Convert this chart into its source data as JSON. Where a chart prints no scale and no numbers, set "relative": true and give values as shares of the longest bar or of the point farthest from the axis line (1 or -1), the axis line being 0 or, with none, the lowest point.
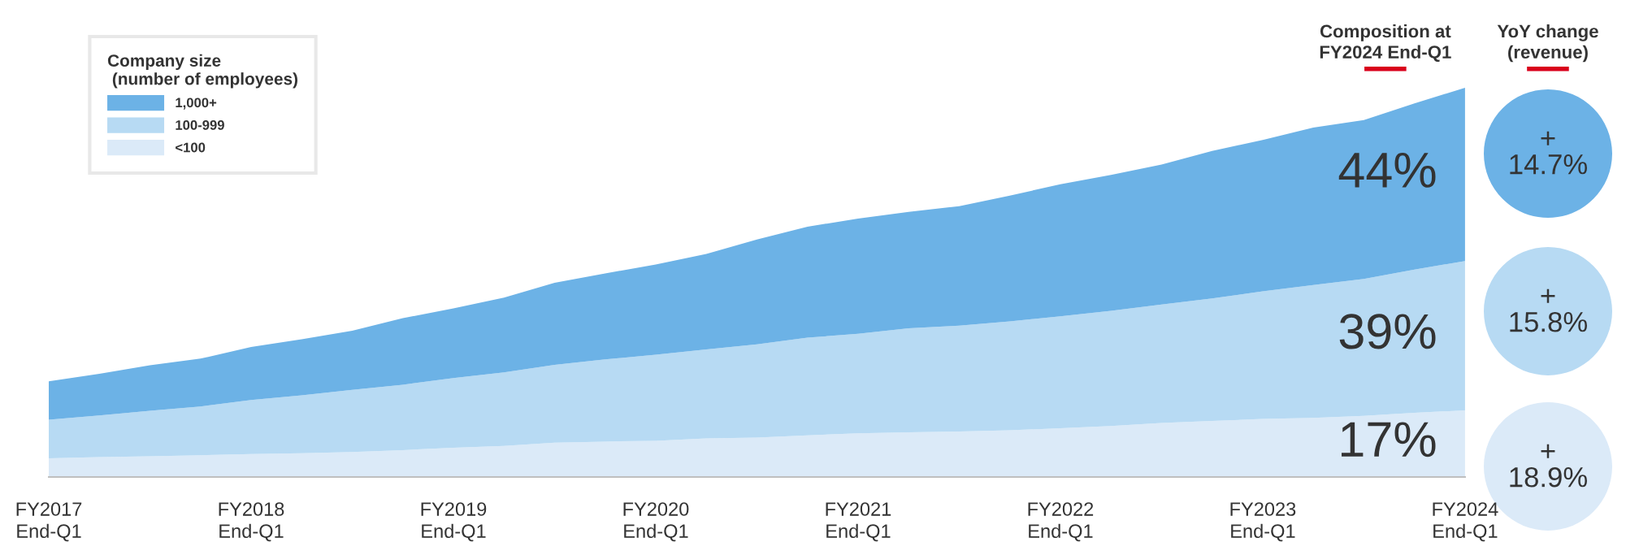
{
  "chart_data": {
    "type": "area",
    "stacked": true,
    "relative": true,
    "categories": [
      "FY2017\nEnd-Q1",
      null,
      null,
      null,
      "FY2018\nEnd-Q1",
      null,
      null,
      null,
      "FY2019\nEnd-Q1",
      null,
      null,
      null,
      "FY2020\nEnd-Q1",
      null,
      null,
      null,
      "FY2021\nEnd-Q1",
      null,
      null,
      null,
      "FY2022\nEnd-Q1",
      null,
      null,
      null,
      "FY2023\nEnd-Q1",
      null,
      null,
      null,
      "FY2024\nEnd-Q1"
    ],
    "series": [
      {
        "name": "<100",
        "color": "#dbeaf8",
        "values": [
          0.048,
          0.051,
          0.053,
          0.056,
          0.059,
          0.061,
          0.064,
          0.069,
          0.075,
          0.08,
          0.088,
          0.091,
          0.093,
          0.099,
          0.101,
          0.107,
          0.112,
          0.115,
          0.117,
          0.12,
          0.125,
          0.131,
          0.139,
          0.144,
          0.149,
          0.152,
          0.157,
          0.165,
          0.171
        ]
      },
      {
        "name": "100-999",
        "color": "#b7daf3",
        "values": [
          0.099,
          0.107,
          0.117,
          0.125,
          0.139,
          0.149,
          0.16,
          0.168,
          0.179,
          0.189,
          0.2,
          0.211,
          0.221,
          0.229,
          0.24,
          0.251,
          0.256,
          0.267,
          0.272,
          0.28,
          0.288,
          0.296,
          0.304,
          0.315,
          0.328,
          0.341,
          0.352,
          0.368,
          0.384
        ]
      },
      {
        "name": "1,000+",
        "color": "#6cb2e6",
        "values": [
          0.099,
          0.107,
          0.117,
          0.123,
          0.136,
          0.144,
          0.152,
          0.171,
          0.179,
          0.192,
          0.211,
          0.221,
          0.232,
          0.245,
          0.269,
          0.285,
          0.296,
          0.299,
          0.307,
          0.323,
          0.339,
          0.349,
          0.36,
          0.379,
          0.389,
          0.405,
          0.408,
          0.427,
          0.445
        ]
      }
    ],
    "legend": "top left",
    "legend_title": "Company size\n (number of employees)",
    "annotations": [
      "Composition at\nFY2024 End-Q1",
      "YoY change\n(revenue)",
      "17%",
      "39%",
      "44%",
      "+\n18.9%",
      "+\n15.8%",
      "+\n14.7%"
    ]
  }
}
